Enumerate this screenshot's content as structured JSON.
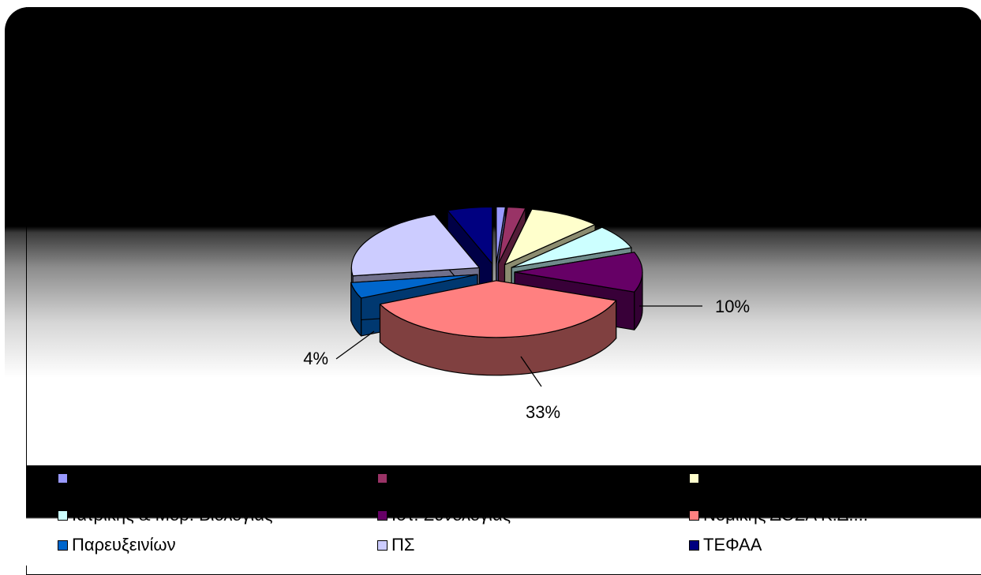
{
  "chart_data": {
    "type": "pie",
    "title": "",
    "categories": [
      "",
      "",
      "",
      "Ιατρικής & Μορ. Βιολογίας",
      "Ιστ. Συνολογίας",
      "Νομικής ΔΟΣΑ Κ.Δ....",
      "Παρευξεινίων",
      "ΠΣ",
      "ΤΕΦΑΑ"
    ],
    "values": [
      1,
      2,
      8,
      6,
      10,
      33,
      4,
      19,
      5
    ],
    "data_labels": [
      "",
      "",
      "",
      "",
      "10%",
      "33%",
      "4%",
      "",
      ""
    ],
    "colors": [
      "#9999ff",
      "#993366",
      "#ffffcc",
      "#ccffff",
      "#660066",
      "#ff8080",
      "#0066cc",
      "#ccccff",
      "#000080"
    ],
    "legend": {
      "position": "bottom",
      "columns": 3
    }
  }
}
